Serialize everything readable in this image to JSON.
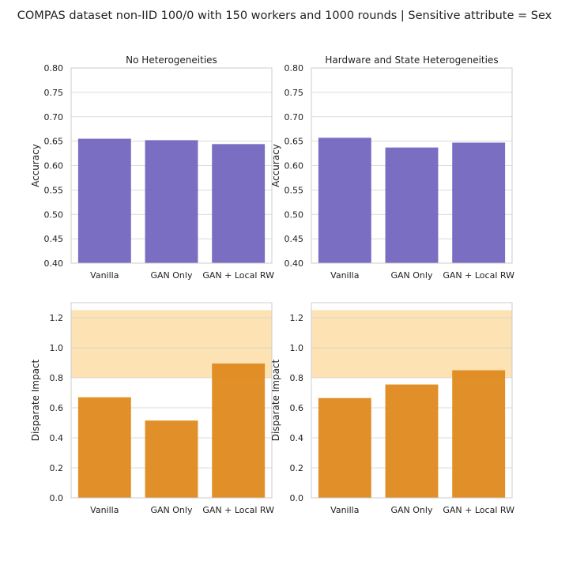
{
  "figure": {
    "title": "COMPAS dataset non-IID 100/0 with 150 workers and 1000 rounds | Sensitive attribute = Sex"
  },
  "chart_data": [
    {
      "type": "bar",
      "title": "No Heterogeneities",
      "xlabel": "",
      "ylabel": "Accuracy",
      "categories": [
        "Vanilla",
        "GAN Only",
        "GAN + Local RW"
      ],
      "values": [
        0.655,
        0.652,
        0.644
      ],
      "ylim": [
        0.4,
        0.8
      ],
      "yticks": [
        "0.40",
        "0.45",
        "0.50",
        "0.55",
        "0.60",
        "0.65",
        "0.70",
        "0.75",
        "0.80"
      ],
      "color": "#7468c0",
      "grid": true
    },
    {
      "type": "bar",
      "title": "Hardware and State Heterogeneities",
      "xlabel": "",
      "ylabel": "Accuracy",
      "categories": [
        "Vanilla",
        "GAN Only",
        "GAN + Local RW"
      ],
      "values": [
        0.657,
        0.637,
        0.647
      ],
      "ylim": [
        0.4,
        0.8
      ],
      "yticks": [
        "0.40",
        "0.45",
        "0.50",
        "0.55",
        "0.60",
        "0.65",
        "0.70",
        "0.75",
        "0.80"
      ],
      "color": "#7468c0",
      "grid": true
    },
    {
      "type": "bar",
      "title": "",
      "xlabel": "",
      "ylabel": "Disparate Impact",
      "categories": [
        "Vanilla",
        "GAN Only",
        "GAN + Local RW"
      ],
      "values": [
        0.67,
        0.515,
        0.895
      ],
      "ylim": [
        0.0,
        1.3
      ],
      "yticks": [
        "0.0",
        "0.2",
        "0.4",
        "0.6",
        "0.8",
        "1.0",
        "1.2"
      ],
      "color": "#e08a20",
      "fair_band": [
        0.8,
        1.25
      ],
      "band_color": "#fde2b4",
      "grid": true
    },
    {
      "type": "bar",
      "title": "",
      "xlabel": "",
      "ylabel": "Disparate Impact",
      "categories": [
        "Vanilla",
        "GAN Only",
        "GAN + Local RW"
      ],
      "values": [
        0.665,
        0.755,
        0.85
      ],
      "ylim": [
        0.0,
        1.3
      ],
      "yticks": [
        "0.0",
        "0.2",
        "0.4",
        "0.6",
        "0.8",
        "1.0",
        "1.2"
      ],
      "color": "#e08a20",
      "fair_band": [
        0.8,
        1.25
      ],
      "band_color": "#fde2b4",
      "grid": true
    }
  ]
}
